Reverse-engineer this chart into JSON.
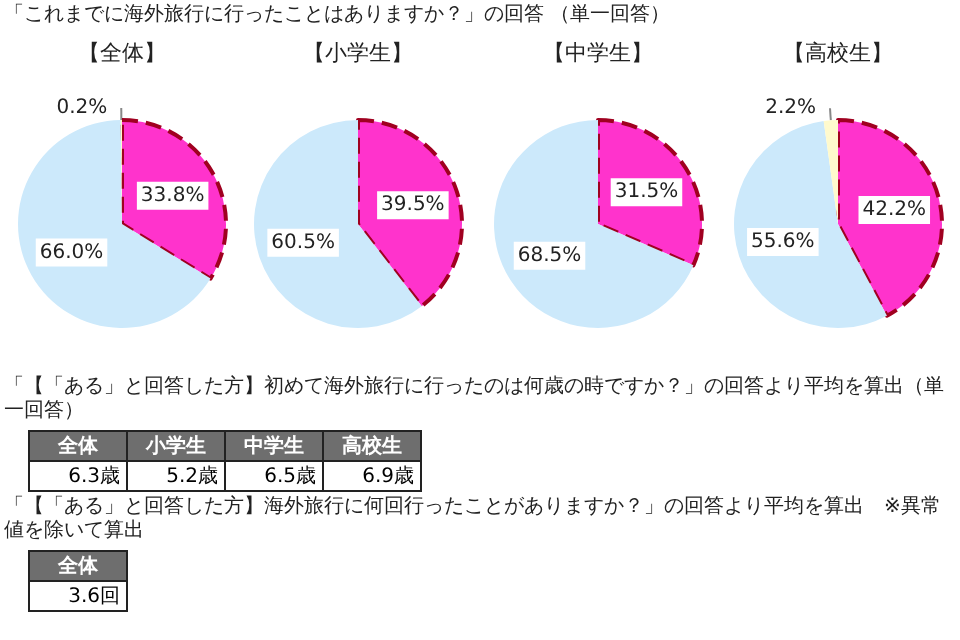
{
  "chart_data": [
    {
      "type": "other",
      "title": "「これまでに海外旅行に行ったことはありますか？」の回答 （単一回答）"
    },
    {
      "type": "pie",
      "title": "【全体】",
      "categories": [
        null,
        null,
        null
      ],
      "values": [
        33.8,
        66.0,
        0.2
      ],
      "colors": [
        "#ff33cc",
        "#cce9fb",
        "#fffacd"
      ],
      "value_labels": [
        "33.8%",
        "66.0%",
        "0.2%"
      ]
    },
    {
      "type": "pie",
      "title": "【小学生】",
      "categories": [
        null,
        null
      ],
      "values": [
        39.5,
        60.5
      ],
      "colors": [
        "#ff33cc",
        "#cce9fb"
      ],
      "value_labels": [
        "39.5%",
        "60.5%"
      ]
    },
    {
      "type": "pie",
      "title": "【中学生】",
      "categories": [
        null,
        null
      ],
      "values": [
        31.5,
        68.5
      ],
      "colors": [
        "#ff33cc",
        "#cce9fb"
      ],
      "value_labels": [
        "31.5%",
        "68.5%"
      ]
    },
    {
      "type": "pie",
      "title": "【高校生】",
      "categories": [
        null,
        null,
        null
      ],
      "values": [
        42.2,
        55.6,
        2.2
      ],
      "colors": [
        "#ff33cc",
        "#cce9fb",
        "#fffacd"
      ],
      "value_labels": [
        "42.2%",
        "55.6%",
        "2.2%"
      ]
    },
    {
      "type": "other",
      "title": "「【「ある」と回答した方】初めて海外旅行に行ったのは何歳の時ですか？」の回答より平均を算出（単一回答）",
      "categories": [
        "全体",
        "小学生",
        "中学生",
        "高校生"
      ],
      "value_labels": [
        "6.3歳",
        "5.2歳",
        "6.5歳",
        "6.9歳"
      ]
    },
    {
      "type": "other",
      "title": "「【「ある」と回答した方】海外旅行に何回行ったことがありますか？」の回答より平均を算出　※異常値を除いて算出",
      "categories": [
        "全体"
      ],
      "value_labels": [
        "3.6回"
      ]
    }
  ]
}
